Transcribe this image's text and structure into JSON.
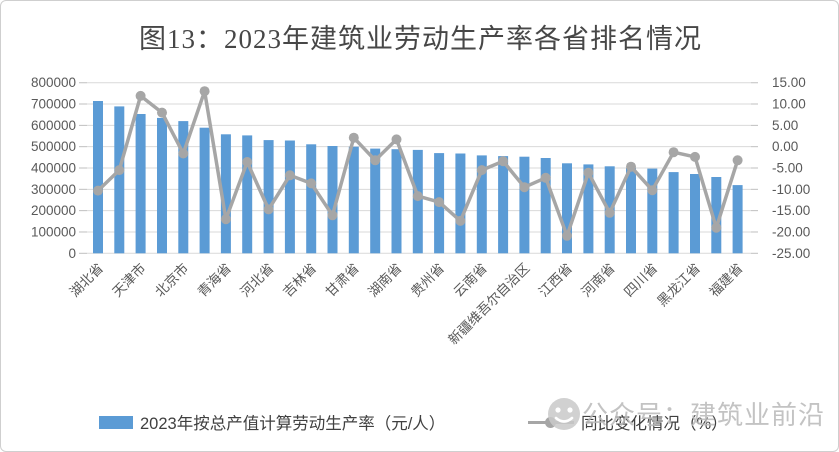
{
  "title": "图13：2023年建筑业劳动生产率各省排名情况",
  "watermark": {
    "icon": "smiley-face-icon",
    "text": "公众号：建筑业前沿"
  },
  "colors": {
    "bar": "#5B9BD5",
    "line": "#A6A6A6",
    "gridline": "#D9D9D9",
    "tick_mark": "#BFBFBF",
    "axis_text": "#595959",
    "title_text": "#474747",
    "watermark_text": "#B9B9B9"
  },
  "chart_data": {
    "type": "bar",
    "subtype": "bar-line-combo",
    "title": "图13：2023年建筑业劳动生产率各省排名情况",
    "grid": true,
    "legend_position": "bottom",
    "categories": [
      "湖北省",
      "",
      "天津市",
      "",
      "北京市",
      "",
      "青海省",
      "",
      "河北省",
      "",
      "吉林省",
      "",
      "甘肃省",
      "",
      "湖南省",
      "",
      "贵州省",
      "",
      "云南省",
      "",
      "新疆维吾尔自治区",
      "",
      "江西省",
      "",
      "河南省",
      "",
      "四川省",
      "",
      "黑龙江省",
      "",
      "福建省"
    ],
    "series": [
      {
        "name": "2023年按总产值计算劳动生产率（元/人）",
        "type": "bar",
        "axis": "left",
        "color": "#5B9BD5",
        "values": [
          714000,
          689000,
          653000,
          635000,
          620000,
          589000,
          558000,
          553000,
          531000,
          529000,
          511000,
          503000,
          500000,
          491000,
          488000,
          485000,
          470000,
          468000,
          459000,
          456000,
          453000,
          447000,
          422000,
          417000,
          408000,
          400000,
          397000,
          381000,
          372000,
          358000,
          320000
        ]
      },
      {
        "name": "同比变化情况（%）",
        "type": "line",
        "axis": "right",
        "color": "#A6A6A6",
        "values": [
          -10.3,
          -5.5,
          11.9,
          8.0,
          -1.6,
          13.0,
          -17.0,
          -3.6,
          -14.7,
          -6.7,
          -8.6,
          -16.1,
          2.1,
          -3.2,
          1.7,
          -11.6,
          -13.0,
          -17.4,
          -5.5,
          -3.4,
          -9.5,
          -7.3,
          -20.9,
          -6.1,
          -15.5,
          -4.7,
          -10.2,
          -1.3,
          -2.4,
          -19.0,
          -3.2
        ]
      }
    ],
    "left_axis": {
      "min": 0,
      "max": 800000,
      "ticks": [
        "800000",
        "700000",
        "600000",
        "500000",
        "400000",
        "300000",
        "200000",
        "100000",
        "0"
      ]
    },
    "right_axis": {
      "min": -25,
      "max": 15,
      "ticks": [
        "15.00",
        "10.00",
        "5.00",
        "0.00",
        "-5.00",
        "-10.00",
        "-15.00",
        "-20.00",
        "-25.00"
      ]
    }
  }
}
